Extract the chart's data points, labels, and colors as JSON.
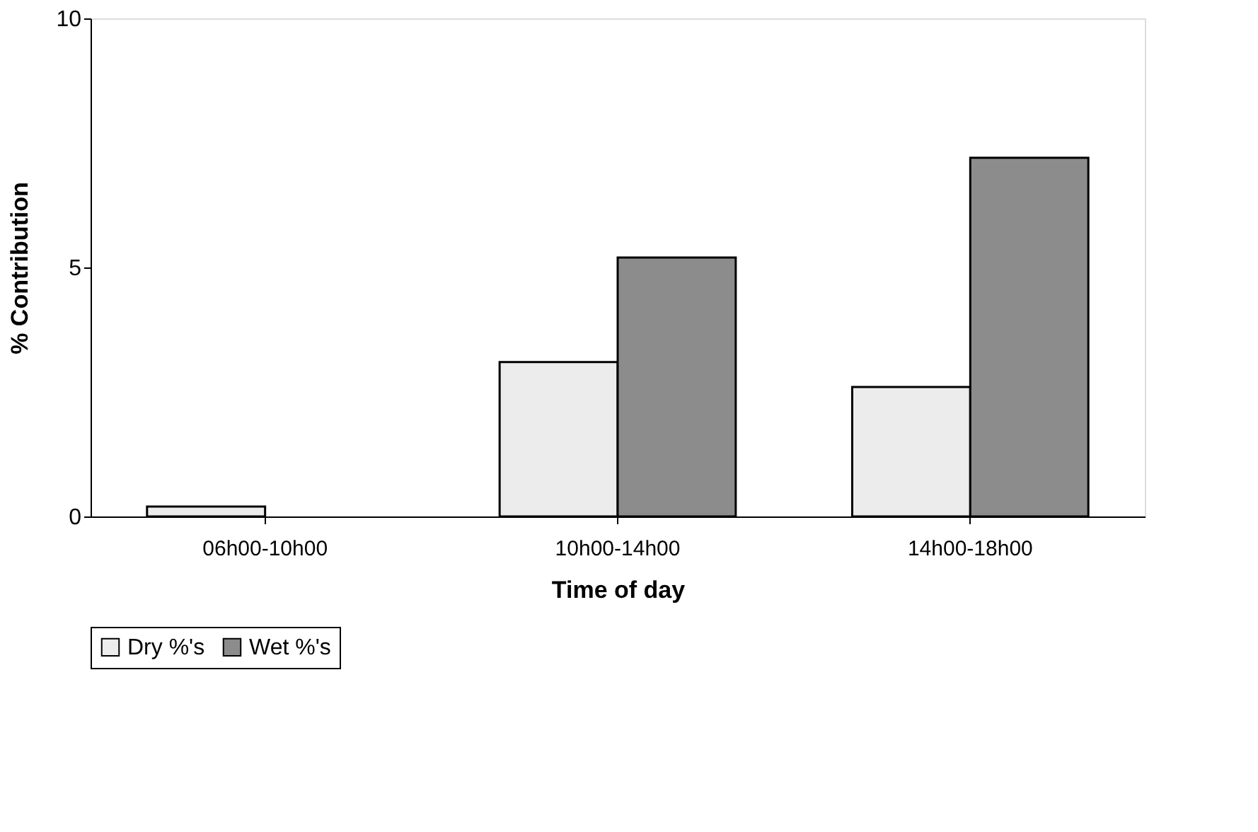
{
  "chart_data": {
    "type": "bar",
    "xlabel": "Time of day",
    "ylabel": "% Contribution",
    "categories": [
      "06h00-10h00",
      "10h00-14h00",
      "14h00-18h00"
    ],
    "series": [
      {
        "name": "Dry %'s",
        "color": "#ececec",
        "values": [
          0.2,
          3.1,
          2.6
        ]
      },
      {
        "name": "Wet %'s",
        "color": "#8c8c8c",
        "values": [
          null,
          5.2,
          7.2
        ]
      }
    ],
    "ylim": [
      0,
      10
    ],
    "yticks": [
      0,
      5,
      10
    ],
    "grid": false,
    "legend": "bottom"
  }
}
